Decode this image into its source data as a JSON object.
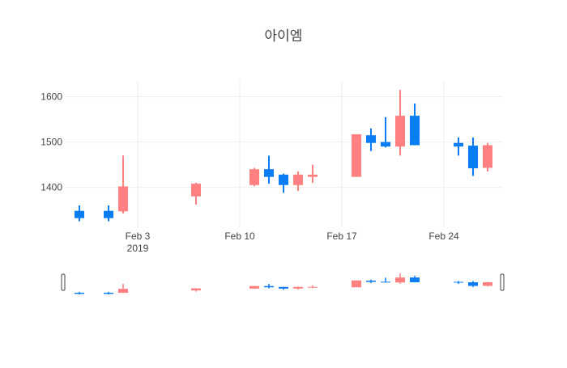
{
  "chart_data": {
    "type": "candlestick",
    "title": "아이엠",
    "xlabel": "",
    "ylabel": "",
    "colors": {
      "increasing": "#ff8080",
      "decreasing": "#0a7cf4",
      "grid": "#eeeeee",
      "tick_text": "#444444",
      "handle_fill": "#ffffff",
      "handle_stroke": "#444444"
    },
    "x_range": [
      "2019-01-29",
      "2019-02-28"
    ],
    "ylim": [
      1310,
      1635
    ],
    "x_ticks": [
      {
        "date": "2019-02-03",
        "label": "Feb 3",
        "sublabel": "2019"
      },
      {
        "date": "2019-02-10",
        "label": "Feb 10",
        "sublabel": ""
      },
      {
        "date": "2019-02-17",
        "label": "Feb 17",
        "sublabel": ""
      },
      {
        "date": "2019-02-24",
        "label": "Feb 24",
        "sublabel": ""
      }
    ],
    "y_ticks": [
      1400,
      1500,
      1600
    ],
    "grid": true,
    "rangeslider": true,
    "candles": [
      {
        "date": "2019-01-30",
        "open": 1348,
        "high": 1360,
        "low": 1325,
        "close": 1332
      },
      {
        "date": "2019-02-01",
        "open": 1348,
        "high": 1360,
        "low": 1325,
        "close": 1332
      },
      {
        "date": "2019-02-02",
        "open": 1347,
        "high": 1470,
        "low": 1342,
        "close": 1402
      },
      {
        "date": "2019-02-07",
        "open": 1380,
        "high": 1410,
        "low": 1362,
        "close": 1408
      },
      {
        "date": "2019-02-11",
        "open": 1405,
        "high": 1443,
        "low": 1402,
        "close": 1440
      },
      {
        "date": "2019-02-12",
        "open": 1440,
        "high": 1470,
        "low": 1408,
        "close": 1423
      },
      {
        "date": "2019-02-13",
        "open": 1428,
        "high": 1430,
        "low": 1388,
        "close": 1405
      },
      {
        "date": "2019-02-14",
        "open": 1405,
        "high": 1435,
        "low": 1392,
        "close": 1428
      },
      {
        "date": "2019-02-15",
        "open": 1423,
        "high": 1450,
        "low": 1410,
        "close": 1428
      },
      {
        "date": "2019-02-18",
        "open": 1423,
        "high": 1517,
        "low": 1423,
        "close": 1517
      },
      {
        "date": "2019-02-19",
        "open": 1515,
        "high": 1530,
        "low": 1480,
        "close": 1498
      },
      {
        "date": "2019-02-20",
        "open": 1500,
        "high": 1555,
        "low": 1488,
        "close": 1490
      },
      {
        "date": "2019-02-21",
        "open": 1490,
        "high": 1615,
        "low": 1470,
        "close": 1558
      },
      {
        "date": "2019-02-22",
        "open": 1558,
        "high": 1585,
        "low": 1493,
        "close": 1493
      },
      {
        "date": "2019-02-25",
        "open": 1498,
        "high": 1510,
        "low": 1470,
        "close": 1490
      },
      {
        "date": "2019-02-26",
        "open": 1492,
        "high": 1510,
        "low": 1425,
        "close": 1442
      },
      {
        "date": "2019-02-27",
        "open": 1443,
        "high": 1498,
        "low": 1435,
        "close": 1493
      }
    ]
  }
}
